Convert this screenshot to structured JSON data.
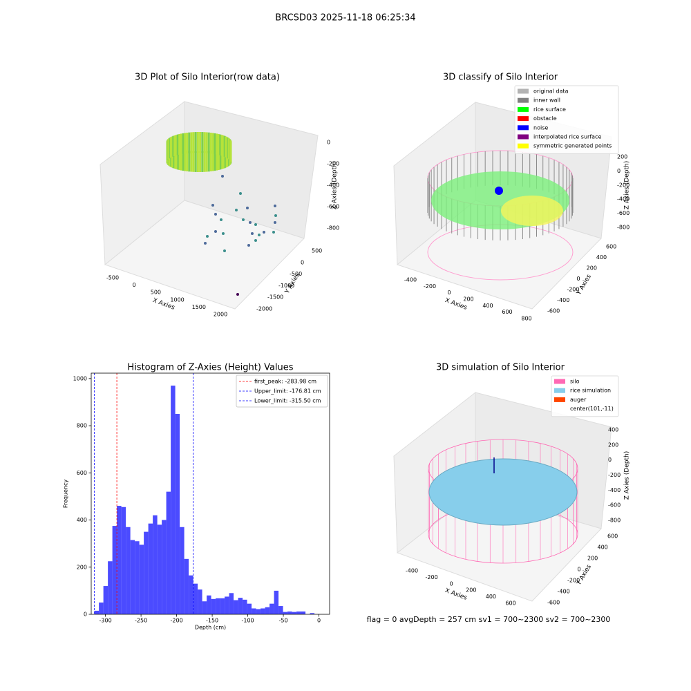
{
  "title": "BRCSD03 2025-11-18 06:25:34",
  "status_text": "flag = 0     avgDepth = 257 cm  sv1 = 700~2300  sv2 = 700~2300",
  "chart_data": [
    {
      "type": "scatter3d",
      "title": "3D Plot of Silo Interior(row data)",
      "xlabel": "X Axies",
      "ylabel": "Y Axies",
      "zlabel": "Z Axies (Depth)",
      "xticks": [
        -500,
        0,
        500,
        1000,
        1500,
        2000
      ],
      "yticks": [
        500,
        0,
        -500,
        -1000,
        -1500,
        -2000
      ],
      "zticks": [
        0,
        -200,
        -400,
        -600,
        -800
      ]
    },
    {
      "type": "scatter3d",
      "title": "3D classify of Silo Interior",
      "xlabel": "X Axies",
      "ylabel": "Y Axies",
      "zlabel": "Z Axies (Depth)",
      "xticks": [
        -400,
        -200,
        0,
        200,
        400,
        600,
        800
      ],
      "yticks": [
        600,
        400,
        200,
        0,
        -200,
        -400,
        -600
      ],
      "zticks": [
        200,
        0,
        -200,
        -400,
        -600,
        -800
      ],
      "legend": [
        {
          "name": "original data",
          "color": "#b3b3b3"
        },
        {
          "name": "inner wall",
          "color": "#808080"
        },
        {
          "name": "rice surface",
          "color": "#00ff00"
        },
        {
          "name": "obstacle",
          "color": "#ff0000"
        },
        {
          "name": "noise",
          "color": "#0000ff"
        },
        {
          "name": "interpolated rice surface",
          "color": "#800080"
        },
        {
          "name": "symmetric generated points",
          "color": "#ffff00"
        }
      ]
    },
    {
      "type": "histogram",
      "title": "Histogram of Z-Axies (Height) Values",
      "xlabel": "Depth (cm)",
      "ylabel": "Frequency",
      "color": "#4b4bff",
      "bins": [
        -315.5,
        -309.19,
        -302.88,
        -296.57,
        -290.26,
        -283.95,
        -277.64,
        -271.33,
        -265.02,
        -258.71,
        -252.4,
        -246.09,
        -239.78,
        -233.47,
        -227.16,
        -220.85,
        -214.54,
        -208.23,
        -201.92,
        -195.61,
        -189.3,
        -182.99,
        -176.68,
        -170.37,
        -164.06,
        -157.75,
        -151.44,
        -145.13,
        -138.82,
        -132.51,
        -126.2,
        -119.89,
        -113.58,
        -107.27,
        -100.96,
        -94.65,
        -88.34,
        -82.03,
        -75.72,
        -69.41,
        -63.1,
        -56.79,
        -50.48,
        -44.17,
        -37.86,
        -31.55,
        -25.24,
        -18.93,
        -12.62,
        -6.31,
        0
      ],
      "counts": [
        15,
        50,
        120,
        225,
        375,
        460,
        455,
        370,
        315,
        310,
        295,
        350,
        385,
        420,
        380,
        400,
        520,
        970,
        850,
        370,
        235,
        165,
        130,
        105,
        55,
        80,
        65,
        68,
        68,
        75,
        90,
        60,
        70,
        62,
        45,
        25,
        22,
        25,
        30,
        45,
        100,
        35,
        10,
        12,
        10,
        12,
        12,
        0,
        5,
        0
      ],
      "xlim": [
        -320,
        15
      ],
      "ylim": [
        0,
        1023
      ],
      "xticks": [
        -300,
        -250,
        -200,
        -150,
        -100,
        -50,
        0
      ],
      "yticks": [
        0,
        200,
        400,
        600,
        800,
        1000
      ],
      "vlines": [
        {
          "label": "first_peak: -283.98 cm",
          "value": -283.98,
          "color": "#ff0000"
        },
        {
          "label": "Upper_limit: -176.81 cm",
          "value": -176.81,
          "color": "#0000ff"
        },
        {
          "label": "Lower_limit: -315.50 cm",
          "value": -315.5,
          "color": "#0000ff"
        }
      ],
      "legend_position": "upper right"
    },
    {
      "type": "scatter3d",
      "title": "3D simulation of Silo Interior",
      "xlabel": "X Axies",
      "ylabel": "Y Axies",
      "zlabel": "Z Axies (Depth)",
      "xticks": [
        -400,
        -200,
        0,
        200,
        400,
        600
      ],
      "yticks": [
        600,
        400,
        200,
        0,
        -200,
        -400,
        -600
      ],
      "zticks": [
        400,
        200,
        0,
        -200,
        -400,
        -600,
        -800
      ],
      "legend": [
        {
          "name": "silo",
          "color": "#ff69b4"
        },
        {
          "name": "rice simulation",
          "color": "#87ceeb"
        },
        {
          "name": "auger",
          "color": "#ff4500"
        },
        {
          "name": "center(101,-11)"
        }
      ]
    }
  ]
}
